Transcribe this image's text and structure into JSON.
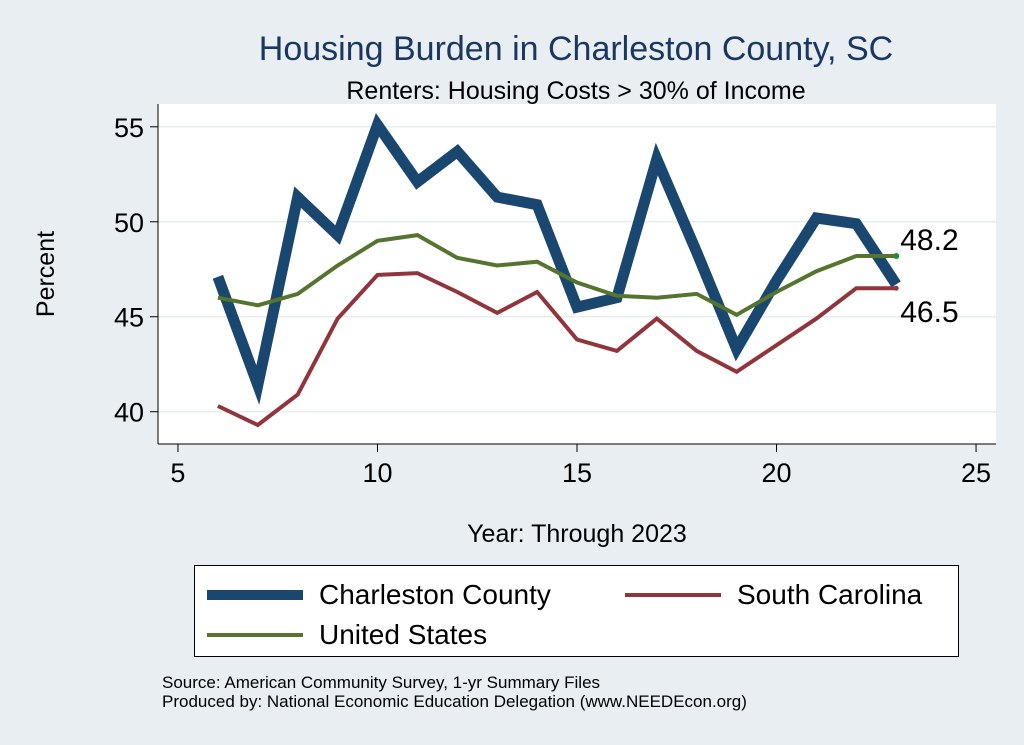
{
  "chart_data": {
    "type": "line",
    "title": "Housing Burden in Charleston County, SC",
    "subtitle": "Renters: Housing Costs > 30% of Income",
    "xlabel": "Year: Through 2023",
    "ylabel": "Percent",
    "xlim": [
      4.5,
      25.5
    ],
    "ylim": [
      38.3,
      56.2
    ],
    "xticks": [
      5,
      10,
      15,
      20,
      25
    ],
    "yticks": [
      40,
      45,
      50,
      55
    ],
    "grid": true,
    "x": [
      6,
      7,
      8,
      9,
      10,
      11,
      12,
      13,
      14,
      15,
      16,
      17,
      18,
      19,
      20,
      21,
      22,
      23
    ],
    "series": [
      {
        "name": "Charleston County",
        "color": "#1a476f",
        "values": [
          47.1,
          41.4,
          51.3,
          49.3,
          55.1,
          52.1,
          53.7,
          51.3,
          50.9,
          45.5,
          46.0,
          53.3,
          48.4,
          43.3,
          46.9,
          50.2,
          49.9,
          46.7
        ]
      },
      {
        "name": "South Carolina",
        "color": "#90353b",
        "values": [
          40.3,
          39.3,
          40.9,
          44.9,
          47.2,
          47.3,
          46.3,
          45.2,
          46.3,
          43.8,
          43.2,
          44.9,
          43.2,
          42.1,
          43.5,
          44.9,
          46.5,
          46.5
        ]
      },
      {
        "name": "United States",
        "color": "#55752f",
        "values": [
          46.0,
          45.6,
          46.2,
          47.7,
          49.0,
          49.3,
          48.1,
          47.7,
          47.9,
          46.8,
          46.1,
          46.0,
          46.2,
          45.1,
          46.3,
          47.4,
          48.2,
          48.2
        ]
      }
    ],
    "annotations": [
      {
        "text": "48.2",
        "x": 23,
        "y": 48.2
      },
      {
        "text": "46.5",
        "x": 23,
        "y": 46.5
      }
    ]
  },
  "source_line": "Source: American Community Survey, 1-yr Summary Files",
  "produced_line": "Produced by: National Economic Education Delegation (www.NEEDEcon.org)"
}
